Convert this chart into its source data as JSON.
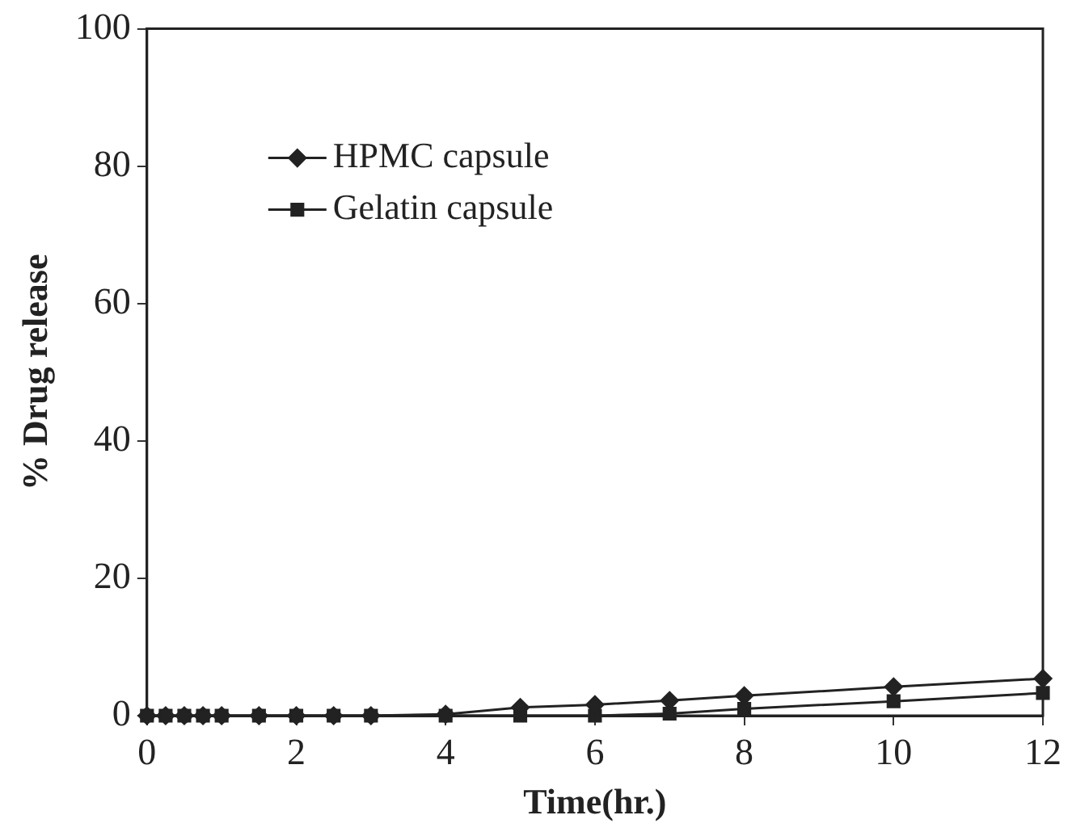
{
  "chart_data": {
    "type": "line",
    "xlabel": "Time(hr.)",
    "ylabel": "% Drug release",
    "xlim": [
      0,
      12
    ],
    "xticks": [
      0,
      2,
      4,
      6,
      8,
      10,
      12
    ],
    "ylim": [
      0,
      100
    ],
    "yticks": [
      0,
      20,
      40,
      60,
      80,
      100
    ],
    "grid": false,
    "legend": "top left",
    "line_style": "solid",
    "x": [
      0,
      0.25,
      0.5,
      0.75,
      1,
      1.5,
      2,
      2.5,
      3,
      4,
      5,
      6,
      7,
      8,
      10,
      12
    ],
    "series": [
      {
        "name": "HPMC capsule",
        "color": "#222222",
        "marker": "diamond",
        "values": [
          0,
          0,
          0,
          0,
          0,
          0,
          0,
          0,
          0,
          0.2,
          1.2,
          1.6,
          2.2,
          2.9,
          4.2,
          5.4
        ]
      },
      {
        "name": "Gelatin capsule",
        "color": "#222222",
        "marker": "square",
        "values": [
          0,
          0,
          0,
          0,
          0,
          0,
          0,
          0,
          0,
          0,
          0,
          0,
          0.3,
          1,
          2.1,
          3.3
        ]
      }
    ]
  }
}
